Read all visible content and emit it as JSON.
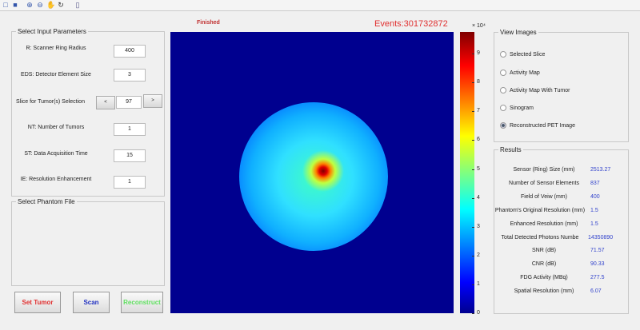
{
  "toolbar": {
    "icons": [
      "new-file-icon",
      "save-icon",
      "zoom-in-icon",
      "zoom-out-icon",
      "pan-icon",
      "rotate-icon",
      "colorbar-icon"
    ]
  },
  "status": "Finished",
  "events": "Events:301732872",
  "input_panel": {
    "title": "Select Input Parameters",
    "fields": [
      {
        "label": "R: Scanner Ring Radius",
        "value": "400"
      },
      {
        "label": "EDS: Detector Element Size",
        "value": "3"
      },
      {
        "label": "Slice for Tumor(s) Selection",
        "value": "97"
      },
      {
        "label": "NT: Number of Tumors",
        "value": "1"
      },
      {
        "label": "ST: Data Acquisition Time",
        "value": "15"
      },
      {
        "label": "IE: Resolution Enhancement",
        "value": "1"
      }
    ],
    "prev": "<",
    "next": ">"
  },
  "phantom_panel": {
    "title": "Select Phantom File"
  },
  "buttons": {
    "set_tumor": "Set Tumor",
    "scan": "Scan",
    "reconstruct": "Reconstruct",
    "colors": {
      "set_tumor": "#e03030",
      "scan": "#2030c0",
      "reconstruct": "#60e060"
    }
  },
  "colorbar": {
    "exponent": "× 10⁴",
    "ticks": [
      "0",
      "1",
      "2",
      "3",
      "4",
      "5",
      "6",
      "7",
      "8",
      "9"
    ],
    "colormap": "jet"
  },
  "view_images": {
    "title": "View Images",
    "options": [
      "Selected Slice",
      "Activity Map",
      "Activity Map With Tumor",
      "Sinogram",
      "Reconstructed PET Image"
    ],
    "selected": 4
  },
  "results": {
    "title": "Results",
    "rows": [
      {
        "label": "Sensor (Ring) Size (mm)",
        "value": "2513.27"
      },
      {
        "label": "Number of Sensor Elements",
        "value": "837"
      },
      {
        "label": "Field of Veiw (mm)",
        "value": "400"
      },
      {
        "label": "Phantom's Original Resolution (mm)",
        "value": "1.5"
      },
      {
        "label": "Enhanced Resolution (mm)",
        "value": "1.5"
      },
      {
        "label": "Total Detected Photons Numbe",
        "value": "14350890"
      },
      {
        "label": "SNR (dB)",
        "value": "71.57"
      },
      {
        "label": "CNR (dB)",
        "value": "90.33"
      },
      {
        "label": "FDG Activity (MBq)",
        "value": "277.5"
      },
      {
        "label": "Spatial Resolution (mm)",
        "value": "6.07"
      }
    ]
  }
}
